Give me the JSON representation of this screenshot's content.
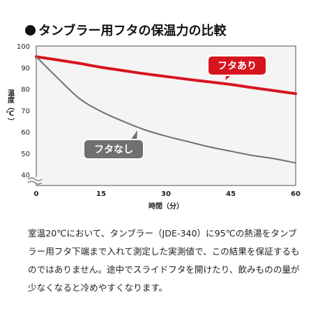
{
  "title": "タンブラー用フタの保温力の比較",
  "caption": "室温20℃において、タンブラー（JDE-340）に95℃の熱湯をタンブラー用フタ下端まで入れて測定した実測値で、この結果を保証するものではありません。途中でスライドフタを開けたり、飲みものの量が少なくなると冷めやすくなります。",
  "chart_data": {
    "type": "line",
    "xlabel": "時間（分）",
    "ylabel": "温度（℃）",
    "xlim": [
      0,
      60
    ],
    "ylim": [
      35,
      100
    ],
    "xticks": [
      0,
      15,
      30,
      45,
      60
    ],
    "yticks": [
      40,
      50,
      60,
      70,
      80,
      90,
      100
    ],
    "axis_break": true,
    "grid": false,
    "series": [
      {
        "name": "フタあり",
        "color": "#d7141e",
        "x": [
          0,
          5,
          10,
          15,
          20,
          25,
          30,
          35,
          40,
          45,
          50,
          55,
          60
        ],
        "y": [
          95,
          93.5,
          91.9,
          90.1,
          88.6,
          87.1,
          85.8,
          84.5,
          83.3,
          82.1,
          80.6,
          79.2,
          77.8
        ]
      },
      {
        "name": "フタなし",
        "color": "#707070",
        "x": [
          0,
          5,
          10,
          15,
          20,
          25,
          30,
          35,
          40,
          45,
          50,
          55,
          60
        ],
        "y": [
          95,
          85,
          75.5,
          69.5,
          65,
          61,
          58,
          55.5,
          53,
          51,
          49,
          47.5,
          45.5
        ]
      }
    ]
  }
}
